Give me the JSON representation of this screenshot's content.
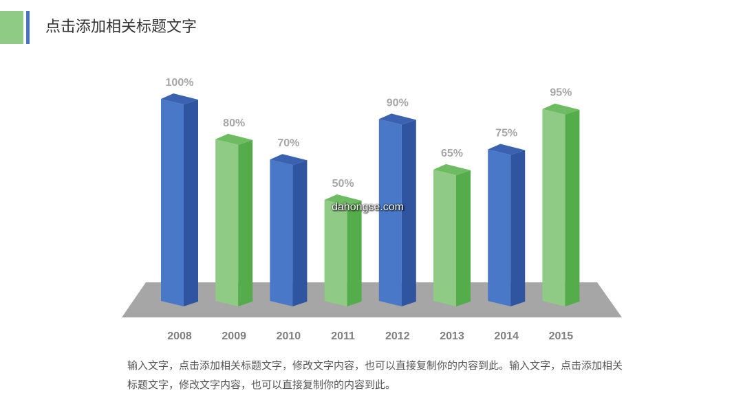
{
  "header": {
    "title": "点击添加相关标题文字",
    "accent_green": "#8fcb84",
    "accent_blue": "#4a73c4"
  },
  "chart_data": {
    "type": "bar",
    "categories": [
      "2008",
      "2009",
      "2010",
      "2011",
      "2012",
      "2013",
      "2014",
      "2015"
    ],
    "values": [
      100,
      80,
      70,
      50,
      90,
      65,
      75,
      95
    ],
    "value_labels": [
      "100%",
      "80%",
      "70%",
      "50%",
      "90%",
      "65%",
      "75%",
      "95%"
    ],
    "bar_colors": [
      "blue",
      "green",
      "blue",
      "green",
      "blue",
      "green",
      "blue",
      "green"
    ],
    "colors": {
      "blue_front": "#4a78c8",
      "blue_side": "#2f55a1",
      "blue_top": "#3a62b0",
      "green_front": "#8fcb84",
      "green_side": "#54ad4a",
      "green_top": "#6dbc62",
      "floor": "#a6a6a6"
    },
    "ylim": [
      0,
      100
    ],
    "grid": false
  },
  "body_text": "输入文字，点击添加相关标题文字，修改文字内容，也可以直接复制你的内容到此。输入文字，点击添加相关标题文字，修改文字内容，也可以直接复制你的内容到此。",
  "watermark": "dahongse.com"
}
